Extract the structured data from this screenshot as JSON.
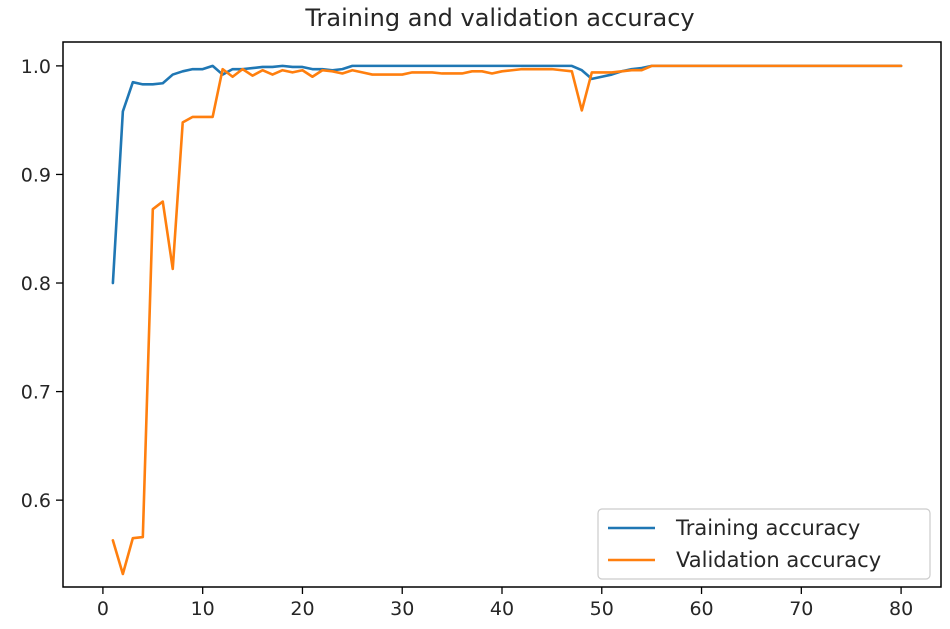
{
  "chart_data": {
    "type": "line",
    "title": "Training and validation accuracy",
    "xlabel": "",
    "ylabel": "",
    "xlim": [
      -4,
      84
    ],
    "ylim": [
      0.52,
      1.022
    ],
    "xticks": [
      0,
      10,
      20,
      30,
      40,
      50,
      60,
      70,
      80
    ],
    "xtick_labels": [
      "0",
      "10",
      "20",
      "30",
      "40",
      "50",
      "60",
      "70",
      "80"
    ],
    "yticks": [
      0.6,
      0.7,
      0.8,
      0.9,
      1.0
    ],
    "ytick_labels": [
      "0.6",
      "0.7",
      "0.8",
      "0.9",
      "1.0"
    ],
    "grid": false,
    "legend_position": "lower-right",
    "x": [
      1,
      2,
      3,
      4,
      5,
      6,
      7,
      8,
      9,
      10,
      11,
      12,
      13,
      14,
      15,
      16,
      17,
      18,
      19,
      20,
      21,
      22,
      23,
      24,
      25,
      26,
      27,
      28,
      29,
      30,
      31,
      32,
      33,
      34,
      35,
      36,
      37,
      38,
      39,
      40,
      41,
      42,
      43,
      44,
      45,
      46,
      47,
      48,
      49,
      50,
      51,
      52,
      53,
      54,
      55,
      56,
      57,
      58,
      59,
      60,
      61,
      62,
      63,
      64,
      65,
      66,
      67,
      68,
      69,
      70,
      71,
      72,
      73,
      74,
      75,
      76,
      77,
      78,
      79,
      80
    ],
    "series": [
      {
        "name": "Training accuracy",
        "color": "#1f77b4",
        "values": [
          0.8,
          0.958,
          0.985,
          0.983,
          0.983,
          0.984,
          0.992,
          0.995,
          0.997,
          0.997,
          1.0,
          0.992,
          0.997,
          0.997,
          0.998,
          0.999,
          0.999,
          1.0,
          0.999,
          0.999,
          0.997,
          0.997,
          0.996,
          0.997,
          1.0,
          1.0,
          1.0,
          1.0,
          1.0,
          1.0,
          1.0,
          1.0,
          1.0,
          1.0,
          1.0,
          1.0,
          1.0,
          1.0,
          1.0,
          1.0,
          1.0,
          1.0,
          1.0,
          1.0,
          1.0,
          1.0,
          1.0,
          0.996,
          0.988,
          0.99,
          0.992,
          0.995,
          0.997,
          0.998,
          1.0,
          1.0,
          1.0,
          1.0,
          1.0,
          1.0,
          1.0,
          1.0,
          1.0,
          1.0,
          1.0,
          1.0,
          1.0,
          1.0,
          1.0,
          1.0,
          1.0,
          1.0,
          1.0,
          1.0,
          1.0,
          1.0,
          1.0,
          1.0,
          1.0,
          1.0
        ]
      },
      {
        "name": "Validation accuracy",
        "color": "#ff7f0e",
        "values": [
          0.563,
          0.532,
          0.565,
          0.566,
          0.868,
          0.875,
          0.813,
          0.948,
          0.953,
          0.953,
          0.953,
          0.997,
          0.99,
          0.997,
          0.991,
          0.996,
          0.992,
          0.996,
          0.994,
          0.996,
          0.99,
          0.996,
          0.995,
          0.993,
          0.996,
          0.994,
          0.992,
          0.992,
          0.992,
          0.992,
          0.994,
          0.994,
          0.994,
          0.993,
          0.993,
          0.993,
          0.995,
          0.995,
          0.993,
          0.995,
          0.996,
          0.997,
          0.997,
          0.997,
          0.997,
          0.996,
          0.995,
          0.959,
          0.994,
          0.994,
          0.994,
          0.995,
          0.996,
          0.996,
          1.0,
          1.0,
          1.0,
          1.0,
          1.0,
          1.0,
          1.0,
          1.0,
          1.0,
          1.0,
          1.0,
          1.0,
          1.0,
          1.0,
          1.0,
          1.0,
          1.0,
          1.0,
          1.0,
          1.0,
          1.0,
          1.0,
          1.0,
          1.0,
          1.0,
          1.0
        ]
      }
    ]
  }
}
